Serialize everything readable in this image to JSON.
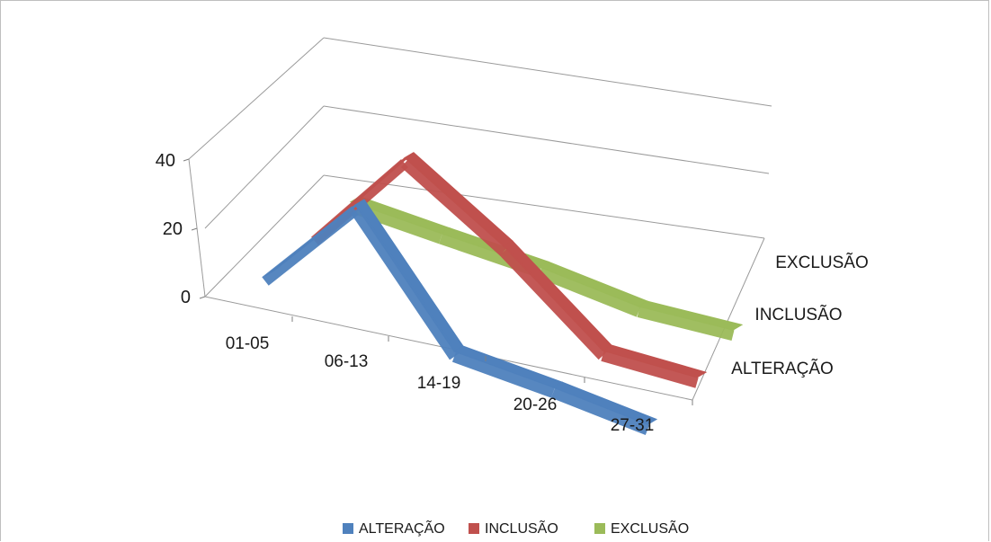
{
  "chart_data": {
    "type": "line",
    "title": "",
    "categories": [
      "01-05",
      "06-13",
      "14-19",
      "20-26",
      "27-31"
    ],
    "depth_labels": [
      "ALTERAÇÃO",
      "INCLUSÃO",
      "EXCLUSÃO"
    ],
    "y_ticks": [
      "0",
      "20",
      "40"
    ],
    "ylim": [
      0,
      40
    ],
    "grid": true,
    "legend_position": "bottom",
    "series": [
      {
        "name": "ALTERAÇÃO",
        "color": "#4f81bd",
        "values": [
          10,
          40,
          5,
          5,
          2
        ]
      },
      {
        "name": "INCLUSÃO",
        "color": "#c0504d",
        "values": [
          6,
          38,
          20,
          0,
          0
        ]
      },
      {
        "name": "EXCLUSÃO",
        "color": "#9bbb59",
        "values": [
          8,
          8,
          6,
          5,
          6
        ]
      }
    ]
  }
}
